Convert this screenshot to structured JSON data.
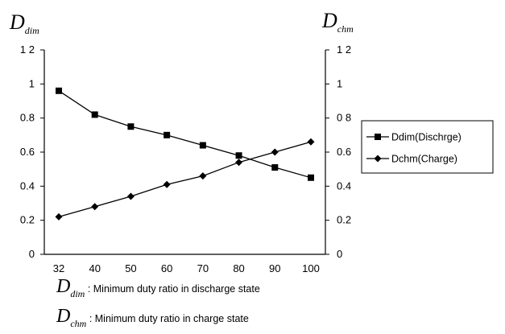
{
  "chart_data": {
    "type": "line",
    "categories": [
      "32",
      "40",
      "50",
      "60",
      "70",
      "80",
      "90",
      "100"
    ],
    "series": [
      {
        "name": "Ddim(Dischrge)",
        "marker": "square",
        "color": "#000000",
        "values": [
          0.96,
          0.82,
          0.75,
          0.7,
          0.64,
          0.58,
          0.51,
          0.45
        ]
      },
      {
        "name": "Dchm(Charge)",
        "marker": "diamond",
        "color": "#000000",
        "values": [
          0.22,
          0.28,
          0.34,
          0.41,
          0.46,
          0.54,
          0.6,
          0.66
        ]
      }
    ],
    "ylim": [
      0,
      1.2
    ],
    "y_ticks": [
      "0",
      "0.2",
      "0.4",
      "0.6",
      "0.8",
      "1",
      "1 2"
    ],
    "y_tick_values": [
      0,
      0.2,
      0.4,
      0.6,
      0.8,
      1.0,
      1.2
    ],
    "y2_ticks": [
      "0",
      "0.2",
      "0.4",
      "0.6",
      "0 8",
      "1",
      "1 2"
    ],
    "left_axis_label": {
      "main": "D",
      "sub": "dim"
    },
    "right_axis_label": {
      "main": "D",
      "sub": "chm"
    },
    "grid": false,
    "legend_placement": "right"
  },
  "notes": [
    {
      "symbol": "D",
      "sub": "dim",
      "text": ": Minimum duty ratio in discharge state"
    },
    {
      "symbol": "D",
      "sub": "chm",
      "text": ": Minimum duty ratio in charge state"
    }
  ]
}
